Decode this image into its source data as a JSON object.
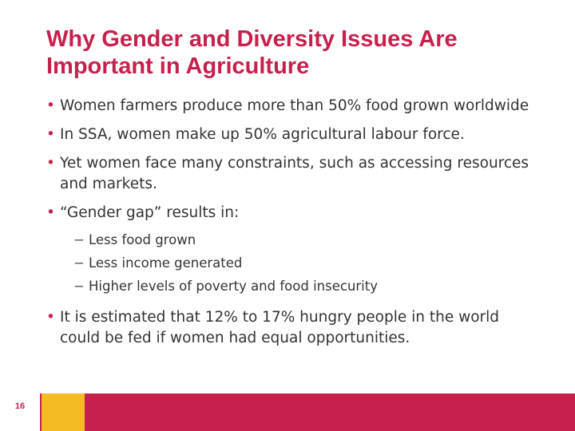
{
  "slide": {
    "title": "Why Gender and Diversity Issues Are Important in Agriculture",
    "bullets": [
      "Women farmers produce more than 50% food grown worldwide",
      "In SSA, women make up 50% agricultural labour force.",
      "Yet women face many constraints, such as accessing resources and markets.",
      "“Gender gap” results in:",
      "It is estimated that 12% to 17% hungry people in the world could be fed if women had equal opportunities."
    ],
    "sub_bullets": [
      "Less food grown",
      "Less income generated",
      "Higher levels of poverty and food insecurity"
    ],
    "page_number": "16"
  },
  "colors": {
    "accent": "#c7204d",
    "yellow": "#f5bb22",
    "text": "#333333"
  }
}
